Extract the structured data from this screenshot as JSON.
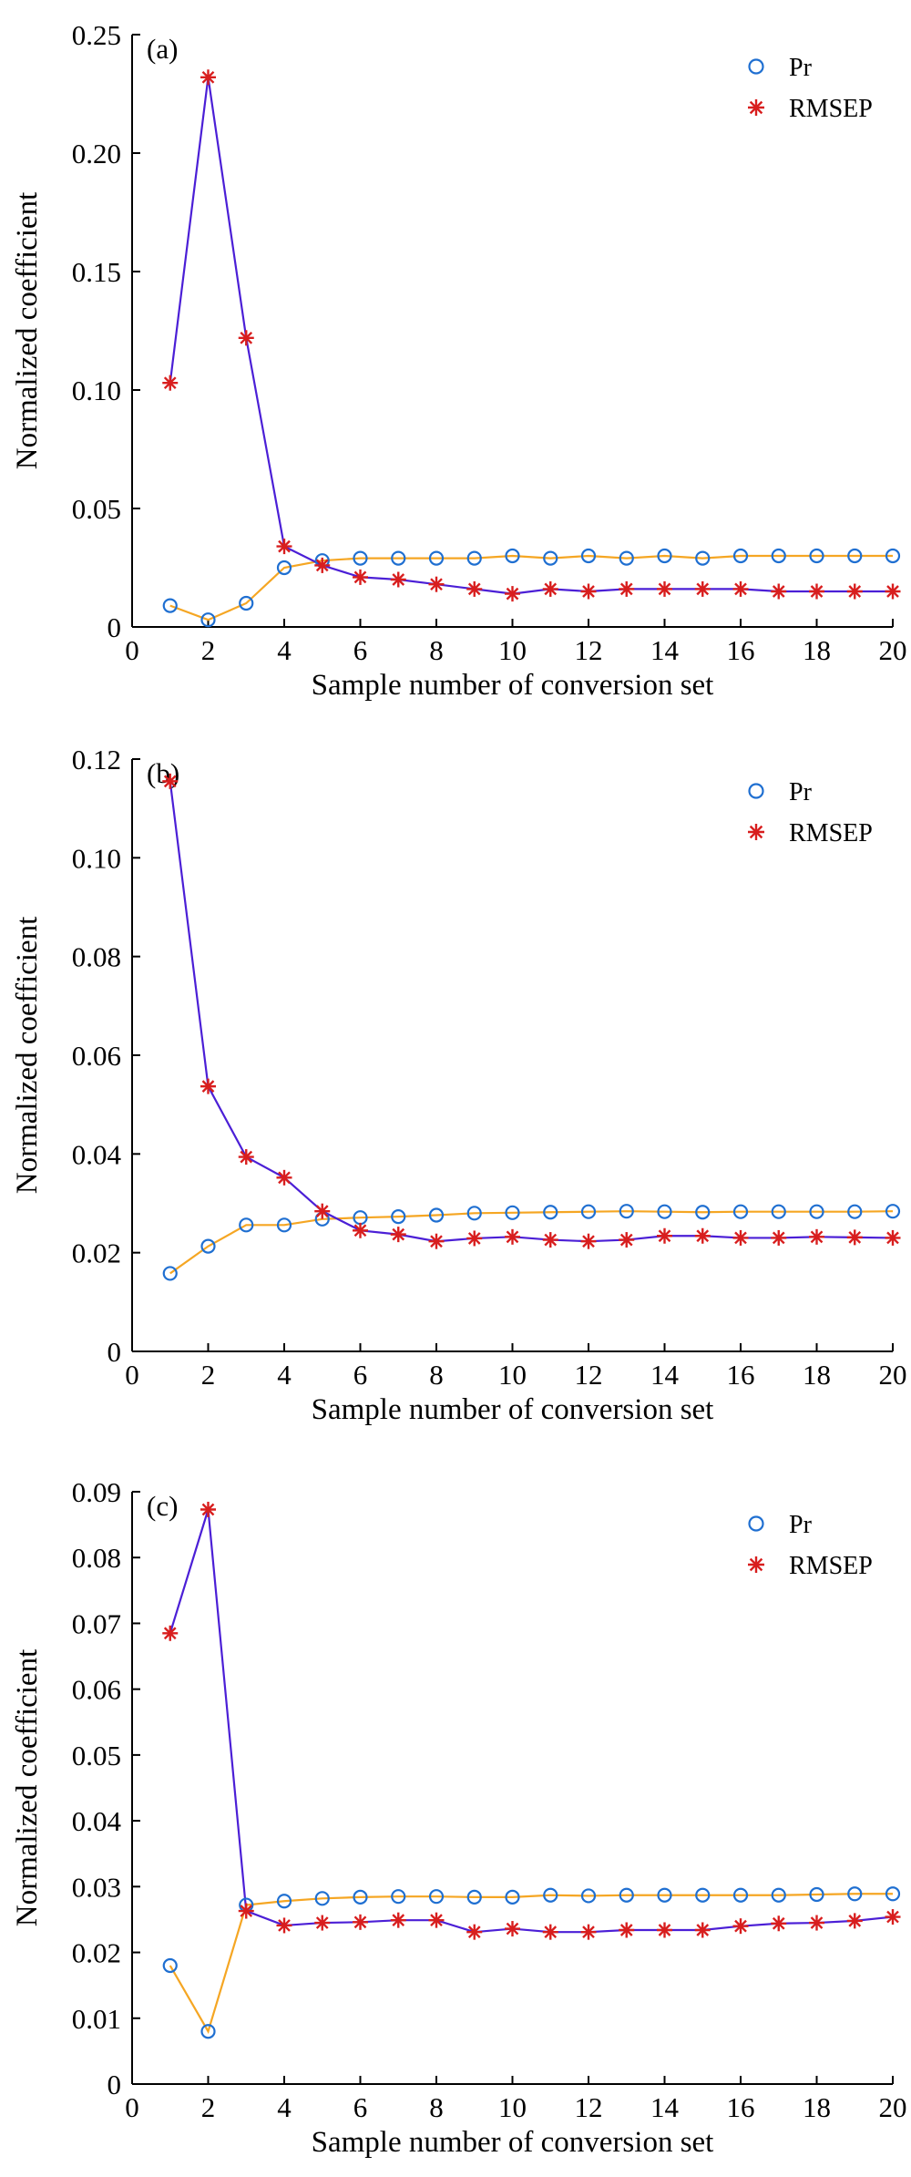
{
  "figure": {
    "legend_pr": "Pr",
    "legend_rmsep": "RMSEP"
  },
  "chart_data": [
    {
      "type": "line",
      "panel_label": "(a)",
      "xlabel": "Sample number of conversion set",
      "ylabel": "Normalized coefficient",
      "xlim": [
        0,
        20
      ],
      "ylim": [
        0,
        0.25
      ],
      "xticks": [
        "0",
        "2",
        "4",
        "6",
        "8",
        "10",
        "12",
        "14",
        "16",
        "18",
        "20"
      ],
      "yticks": [
        "0",
        "0.05",
        "0.10",
        "0.15",
        "0.20",
        "0.25"
      ],
      "legend_position": "top-right",
      "grid": false,
      "x": [
        1,
        2,
        3,
        4,
        5,
        6,
        7,
        8,
        9,
        10,
        11,
        12,
        13,
        14,
        15,
        16,
        17,
        18,
        19,
        20
      ],
      "series": [
        {
          "name": "Pr",
          "marker": "circle",
          "line_color": "#f5a623",
          "marker_color": "#1f6fd1",
          "values": [
            0.009,
            0.003,
            0.01,
            0.025,
            0.028,
            0.029,
            0.029,
            0.029,
            0.029,
            0.03,
            0.029,
            0.03,
            0.029,
            0.03,
            0.029,
            0.03,
            0.03,
            0.03,
            0.03,
            0.03
          ]
        },
        {
          "name": "RMSEP",
          "marker": "asterisk",
          "line_color": "#4b1fd6",
          "marker_color": "#d81e1e",
          "values": [
            0.103,
            0.232,
            0.122,
            0.034,
            0.026,
            0.021,
            0.02,
            0.018,
            0.016,
            0.014,
            0.016,
            0.015,
            0.016,
            0.016,
            0.016,
            0.016,
            0.015,
            0.015,
            0.015,
            0.015
          ]
        }
      ]
    },
    {
      "type": "line",
      "panel_label": "(b)",
      "xlabel": "Sample number of conversion set",
      "ylabel": "Normalized coefficient",
      "xlim": [
        0,
        20
      ],
      "ylim": [
        0,
        0.12
      ],
      "xticks": [
        "0",
        "2",
        "4",
        "6",
        "8",
        "10",
        "12",
        "14",
        "16",
        "18",
        "20"
      ],
      "yticks": [
        "0",
        "0.02",
        "0.04",
        "0.06",
        "0.08",
        "0.10",
        "0.12"
      ],
      "legend_position": "top-right",
      "grid": false,
      "x": [
        1,
        2,
        3,
        4,
        5,
        6,
        7,
        8,
        9,
        10,
        11,
        12,
        13,
        14,
        15,
        16,
        17,
        18,
        19,
        20
      ],
      "series": [
        {
          "name": "Pr",
          "marker": "circle",
          "line_color": "#f5a623",
          "marker_color": "#1f6fd1",
          "values": [
            0.0158,
            0.0213,
            0.0256,
            0.0256,
            0.0268,
            0.0271,
            0.0273,
            0.0276,
            0.028,
            0.0281,
            0.0282,
            0.0283,
            0.0284,
            0.0283,
            0.0282,
            0.0283,
            0.0283,
            0.0283,
            0.0283,
            0.0284
          ]
        },
        {
          "name": "RMSEP",
          "marker": "asterisk",
          "line_color": "#4b1fd6",
          "marker_color": "#d81e1e",
          "values": [
            0.1155,
            0.0537,
            0.0394,
            0.0352,
            0.0284,
            0.0245,
            0.0237,
            0.0223,
            0.0229,
            0.0232,
            0.0226,
            0.0223,
            0.0226,
            0.0234,
            0.0234,
            0.023,
            0.023,
            0.0232,
            0.0231,
            0.023
          ]
        }
      ]
    },
    {
      "type": "line",
      "panel_label": "(c)",
      "xlabel": "Sample number of conversion set",
      "ylabel": "Normalized coefficient",
      "xlim": [
        0,
        20
      ],
      "ylim": [
        0,
        0.09
      ],
      "xticks": [
        "0",
        "2",
        "4",
        "6",
        "8",
        "10",
        "12",
        "14",
        "16",
        "18",
        "20"
      ],
      "yticks": [
        "0",
        "0.01",
        "0.02",
        "0.03",
        "0.04",
        "0.05",
        "0.06",
        "0.07",
        "0.08",
        "0.09"
      ],
      "legend_position": "top-right",
      "grid": false,
      "x": [
        1,
        2,
        3,
        4,
        5,
        6,
        7,
        8,
        9,
        10,
        11,
        12,
        13,
        14,
        15,
        16,
        17,
        18,
        19,
        20
      ],
      "series": [
        {
          "name": "Pr",
          "marker": "circle",
          "line_color": "#f5a623",
          "marker_color": "#1f6fd1",
          "values": [
            0.018,
            0.008,
            0.0272,
            0.0278,
            0.0282,
            0.0284,
            0.0285,
            0.0285,
            0.0284,
            0.0284,
            0.0287,
            0.0286,
            0.0287,
            0.0287,
            0.0287,
            0.0287,
            0.0287,
            0.0288,
            0.0289,
            0.0289
          ]
        },
        {
          "name": "RMSEP",
          "marker": "asterisk",
          "line_color": "#4b1fd6",
          "marker_color": "#d81e1e",
          "values": [
            0.0685,
            0.0873,
            0.0263,
            0.0241,
            0.0245,
            0.0246,
            0.0249,
            0.0249,
            0.0231,
            0.0236,
            0.0231,
            0.0231,
            0.0234,
            0.0234,
            0.0234,
            0.024,
            0.0244,
            0.0245,
            0.0248,
            0.0254
          ]
        }
      ]
    }
  ]
}
